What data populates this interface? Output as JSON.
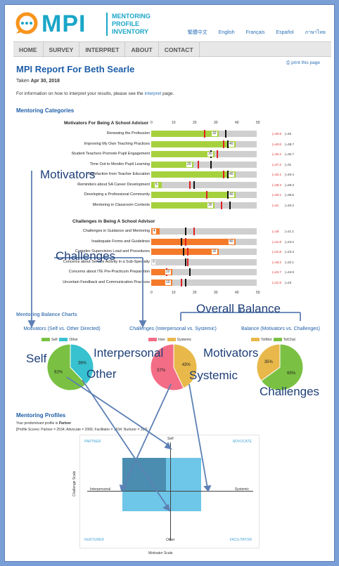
{
  "header": {
    "logo": "MPI",
    "subtitle_lines": [
      "MENTORING",
      "PROFILE",
      "INVENTORY"
    ],
    "languages": [
      "繁體中文",
      "English",
      "Français",
      "Español",
      "ภาษาไทย"
    ]
  },
  "nav": [
    "HOME",
    "SURVEY",
    "INTERPRET",
    "ABOUT",
    "CONTACT"
  ],
  "report": {
    "title": "MPI Report For Beth Searle",
    "print_label": "print this page",
    "taken_prefix": "Taken",
    "taken_date": "Apr 30, 2018",
    "info_text": "For information on how to interpret your results, please see the",
    "info_link": "interpret",
    "info_tail": "page."
  },
  "categories": {
    "heading": "Mentoring Categories",
    "axis_ticks": [
      "0",
      "10",
      "20",
      "30",
      "40",
      "50"
    ],
    "motivators": {
      "heading": "Motivators For Being A School Advisor",
      "rows": [
        {
          "label": "Renewing the Profession",
          "value": 32,
          "red": 25,
          "black": 35,
          "n1": "(=40.9",
          "n2": ")=40"
        },
        {
          "label": "Improving My Own Teaching Practices",
          "value": 40,
          "red": 34,
          "black": 36,
          "n1": "(=40.8",
          "n2": ")=38.7"
        },
        {
          "label": "Student Teachers Promote Pupil Engagement",
          "value": 30,
          "red": 31,
          "black": 28,
          "n1": "(=32.4",
          "n2": ")=32.7"
        },
        {
          "label": "Time Out to Monitor Pupil Learning",
          "value": 20,
          "red": 22,
          "black": 28,
          "n1": "(=27.2",
          "n2": ")=31"
        },
        {
          "label": "Satisfaction from Teacher Education",
          "value": 40,
          "red": 34,
          "black": 36,
          "n1": "(=42.1",
          "n2": ")=40.4"
        },
        {
          "label": "Reminders about SA Career Development",
          "value": 5,
          "red": 18,
          "black": 20,
          "n1": "(=25.3",
          "n2": ")=28.3"
        },
        {
          "label": "Developing a Professional Community",
          "value": 40,
          "red": 26,
          "black": 36,
          "n1": "(=40.1",
          "n2": ")=38.6"
        },
        {
          "label": "Mentoring in Classroom Contexts",
          "value": 30,
          "red": 33,
          "black": 37,
          "n1": "(=41",
          "n2": ")=40.2"
        }
      ]
    },
    "challenges": {
      "heading": "Challenges in Being A School Advisor",
      "rows": [
        {
          "label": "Challenges in Guidance and Mentoring",
          "value": 4,
          "red": 20,
          "black": 16,
          "n1": "(=18",
          "n2": ")=21.1"
        },
        {
          "label": "Inadequate Forms and Guidelines",
          "value": 40,
          "red": 16,
          "black": 14,
          "n1": "(=21.8",
          "n2": ")=23.2"
        },
        {
          "label": "Complex Supervision Load and Procedures",
          "value": 32,
          "red": 17,
          "black": 15,
          "n1": "(=21.8",
          "n2": ")=23.3"
        },
        {
          "label": "Concerns about Service Activity in a Sub-Specialty",
          "value": 0,
          "red": 17,
          "black": 16,
          "n1": "(=18.3",
          "n2": ")=22.1"
        },
        {
          "label": "Concerns about ITE Pre-Practicum Preparation",
          "value": 10,
          "red": 7,
          "black": 18,
          "n1": "(=24.7",
          "n2": ")=24.9"
        },
        {
          "label": "Uncertain Feedback and Communication Practices",
          "value": 10,
          "red": 14,
          "black": 16,
          "n1": "(=21.9",
          "n2": ")=23"
        }
      ]
    }
  },
  "balance": {
    "heading": "Mentoring Balance Charts",
    "charts": [
      {
        "title": "Motivators (Self vs. Other Directed)",
        "legend": [
          "Self",
          "Other"
        ],
        "values": [
          62,
          38
        ],
        "colors": [
          "#7ac143",
          "#38c1cf"
        ],
        "labels": [
          "62%",
          "38%"
        ]
      },
      {
        "title": "Challenges (Interpersonal vs. Systemic)",
        "legend": [
          "Inter",
          "Systemic"
        ],
        "values": [
          57,
          43
        ],
        "colors": [
          "#f26d85",
          "#e8b84a"
        ],
        "labels": [
          "57%",
          "43%"
        ]
      },
      {
        "title": "Balance (Motivators vs. Challenges)",
        "legend": [
          "TotMot",
          "TotChal"
        ],
        "values": [
          35,
          65
        ],
        "colors": [
          "#e8b84a",
          "#7ac143"
        ],
        "labels": [
          "35%",
          "65%"
        ]
      }
    ]
  },
  "profiles": {
    "heading": "Mentoring Profiles",
    "predominant_prefix": "Your predominant profile is",
    "predominant": "Partner",
    "scores": "[Profile Scores: Partner = 2534; Advocate = 2066; Facilitator = 1634; Nurturer = 166]",
    "quadrants": [
      "PARTNER",
      "ADVOCATE",
      "NURTURER",
      "FACILITATOR"
    ],
    "axes": {
      "top": "Self",
      "bottom": "Other",
      "left": "Interpersonal",
      "right": "Systemic",
      "x_title": "Motivator Scale",
      "y_title": "Challenge Scale"
    }
  },
  "annotations": {
    "motivators": "Motivators",
    "challenges": "Challenges",
    "overall_balance": "Overall Balance",
    "self": "Self",
    "other": "Other",
    "interpersonal": "Interpersonal",
    "systemic": "Systemic",
    "motivators2": "Motivators",
    "challenges2": "Challenges"
  },
  "colors": {
    "green": "#a6d13e",
    "orange": "#f47a2a",
    "accent": "#1e5ea8"
  }
}
